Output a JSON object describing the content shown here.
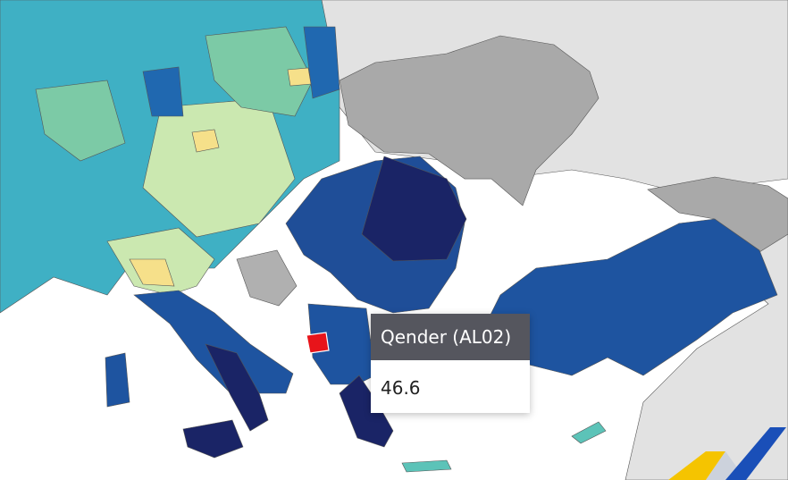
{
  "tooltip": {
    "title": "Qender (AL02)",
    "value": 46.6
  }
}
